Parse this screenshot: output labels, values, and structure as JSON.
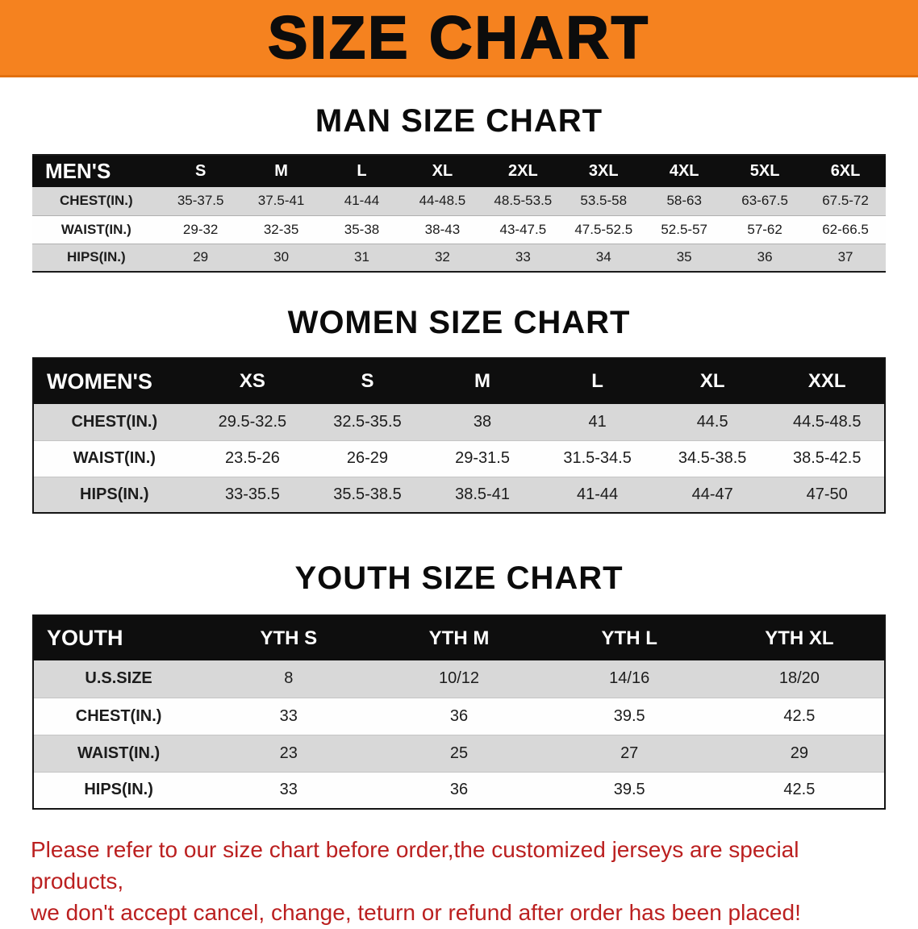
{
  "banner": {
    "title": "SIZE CHART"
  },
  "sections": [
    {
      "heading": "MAN SIZE CHART",
      "table": {
        "corner_label": "MEN'S",
        "columns": [
          "S",
          "M",
          "L",
          "XL",
          "2XL",
          "3XL",
          "4XL",
          "5XL",
          "6XL"
        ],
        "rows": [
          {
            "label": "CHEST(IN.)",
            "values": [
              "35-37.5",
              "37.5-41",
              "41-44",
              "44-48.5",
              "48.5-53.5",
              "53.5-58",
              "58-63",
              "63-67.5",
              "67.5-72"
            ]
          },
          {
            "label": "WAIST(IN.)",
            "values": [
              "29-32",
              "32-35",
              "35-38",
              "38-43",
              "43-47.5",
              "47.5-52.5",
              "52.5-57",
              "57-62",
              "62-66.5"
            ]
          },
          {
            "label": "HIPS(IN.)",
            "values": [
              "29",
              "30",
              "31",
              "32",
              "33",
              "34",
              "35",
              "36",
              "37"
            ]
          }
        ]
      }
    },
    {
      "heading": "WOMEN SIZE CHART",
      "table": {
        "corner_label": "WOMEN'S",
        "columns": [
          "XS",
          "S",
          "M",
          "L",
          "XL",
          "XXL"
        ],
        "rows": [
          {
            "label": "CHEST(IN.)",
            "values": [
              "29.5-32.5",
              "32.5-35.5",
              "38",
              "41",
              "44.5",
              "44.5-48.5"
            ]
          },
          {
            "label": "WAIST(IN.)",
            "values": [
              "23.5-26",
              "26-29",
              "29-31.5",
              "31.5-34.5",
              "34.5-38.5",
              "38.5-42.5"
            ]
          },
          {
            "label": "HIPS(IN.)",
            "values": [
              "33-35.5",
              "35.5-38.5",
              "38.5-41",
              "41-44",
              "44-47",
              "47-50"
            ]
          }
        ]
      }
    },
    {
      "heading": "YOUTH SIZE CHART",
      "table": {
        "corner_label": "YOUTH",
        "columns": [
          "YTH S",
          "YTH M",
          "YTH L",
          "YTH XL"
        ],
        "rows": [
          {
            "label": "U.S.SIZE",
            "values": [
              "8",
              "10/12",
              "14/16",
              "18/20"
            ]
          },
          {
            "label": "CHEST(IN.)",
            "values": [
              "33",
              "36",
              "39.5",
              "42.5"
            ]
          },
          {
            "label": "WAIST(IN.)",
            "values": [
              "23",
              "25",
              "27",
              "29"
            ]
          },
          {
            "label": "HIPS(IN.)",
            "values": [
              "33",
              "36",
              "39.5",
              "42.5"
            ]
          }
        ]
      }
    }
  ],
  "note": {
    "lines": [
      "Please refer to our size chart before order,the customized jerseys are special products,",
      "we don't accept cancel, change, teturn or refund after order has been placed!"
    ]
  },
  "colors": {
    "banner_bg": "#f5821f",
    "header_bg": "#0e0e0e",
    "row_shade": "#d8d8d8",
    "note_text": "#bb2020"
  }
}
